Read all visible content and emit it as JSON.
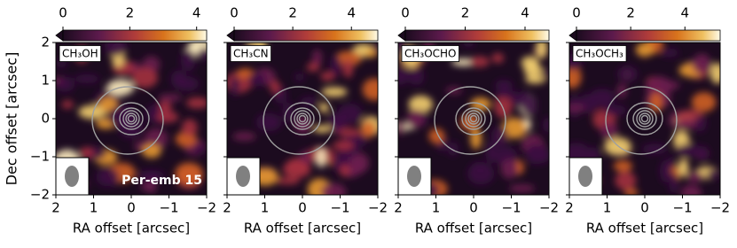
{
  "chart_data": [
    {
      "type": "heatmap",
      "label": "CH₃OH",
      "annotation": "Per-emb 15",
      "xlabel": "RA offset [arcsec]",
      "ylabel": "Dec offset [arcsec]",
      "xlim": [
        2,
        -2
      ],
      "ylim": [
        -2,
        2
      ],
      "xticks": [
        2,
        1,
        0,
        {
          "value": -1,
          "label": "−1"
        },
        {
          "value": -2,
          "label": "−2"
        }
      ],
      "yticks": [
        {
          "value": -2,
          "label": "−2"
        },
        {
          "value": -1,
          "label": "−1"
        },
        0,
        1,
        2
      ],
      "ytick_labels": true,
      "clim": [
        0,
        4.3
      ],
      "cticks": [
        0,
        2,
        4
      ],
      "contour_color": "#a0a0a0"
    },
    {
      "type": "heatmap",
      "label": "CH₃CN",
      "xlabel": "RA offset [arcsec]",
      "xlim": [
        2,
        -2
      ],
      "ylim": [
        -2,
        2
      ],
      "xticks": [
        2,
        1,
        0,
        {
          "value": -1,
          "label": "−1"
        },
        {
          "value": -2,
          "label": "−2"
        }
      ],
      "yticks": [
        -2,
        -1,
        0,
        1,
        2
      ],
      "ytick_labels": false,
      "clim": [
        0,
        4.9
      ],
      "cticks": [
        0,
        2,
        4
      ],
      "contour_color": "#a0a0a0"
    },
    {
      "type": "heatmap",
      "label": "CH₃OCHO",
      "xlabel": "RA offset [arcsec]",
      "xlim": [
        2,
        -2
      ],
      "ylim": [
        -2,
        2
      ],
      "xticks": [
        2,
        1,
        0,
        {
          "value": -1,
          "label": "−1"
        },
        {
          "value": -2,
          "label": "−2"
        }
      ],
      "yticks": [
        -2,
        -1,
        0,
        1,
        2
      ],
      "ytick_labels": false,
      "clim": [
        0,
        4.8
      ],
      "cticks": [
        0,
        2,
        4
      ],
      "contour_color": "#a0a0a0"
    },
    {
      "type": "heatmap",
      "label": "CH₃OCH₃",
      "xlabel": "RA offset [arcsec]",
      "xlim": [
        2,
        -2
      ],
      "ylim": [
        -2,
        2
      ],
      "xticks": [
        2,
        1,
        0,
        {
          "value": -1,
          "label": "−1"
        },
        {
          "value": -2,
          "label": "−2"
        }
      ],
      "yticks": [
        -2,
        -1,
        0,
        1,
        2
      ],
      "ytick_labels": false,
      "clim": [
        0,
        5.3
      ],
      "cticks": [
        0,
        2,
        4
      ],
      "contour_color": "#a0a0a0"
    }
  ]
}
